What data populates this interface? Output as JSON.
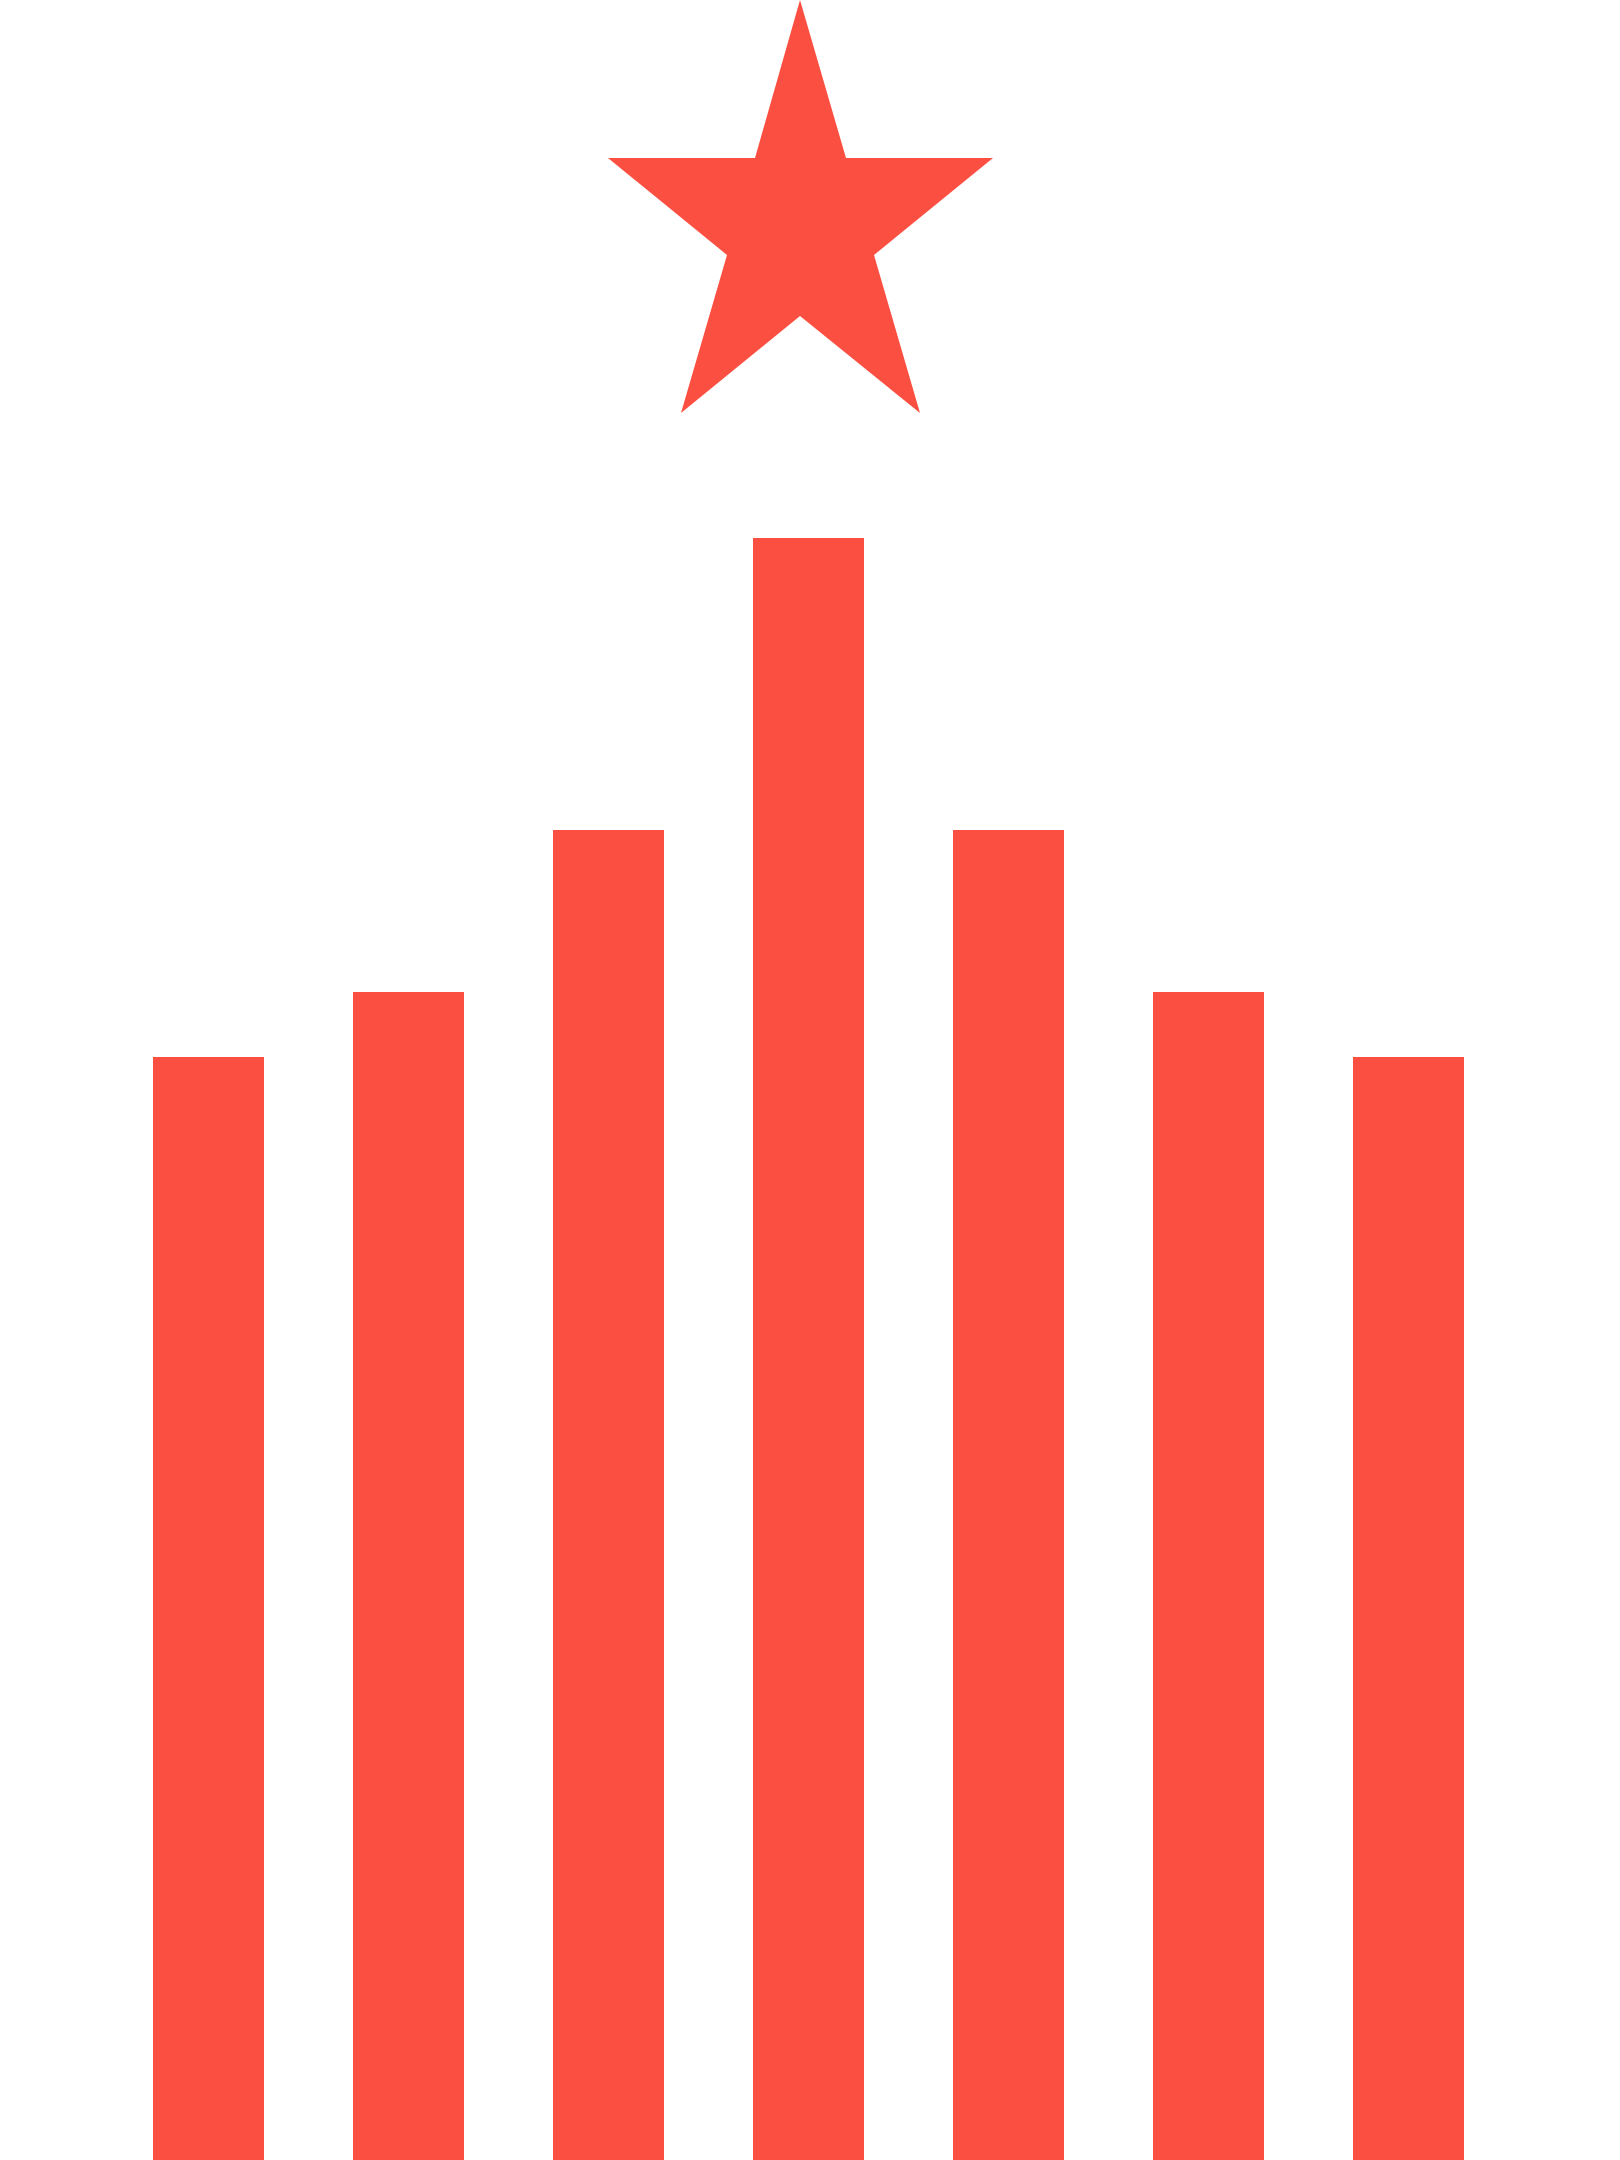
{
  "emblem": {
    "color": "#FB4F41",
    "background": "#FFFFFF",
    "icon": "star-over-bars-logo",
    "star": {
      "icon": "five-point-star-icon"
    },
    "bars": [
      {
        "level": 0.68
      },
      {
        "level": 0.72
      },
      {
        "level": 0.82
      },
      {
        "level": 1.0
      },
      {
        "level": 0.82
      },
      {
        "level": 0.72
      },
      {
        "level": 0.68
      }
    ]
  }
}
